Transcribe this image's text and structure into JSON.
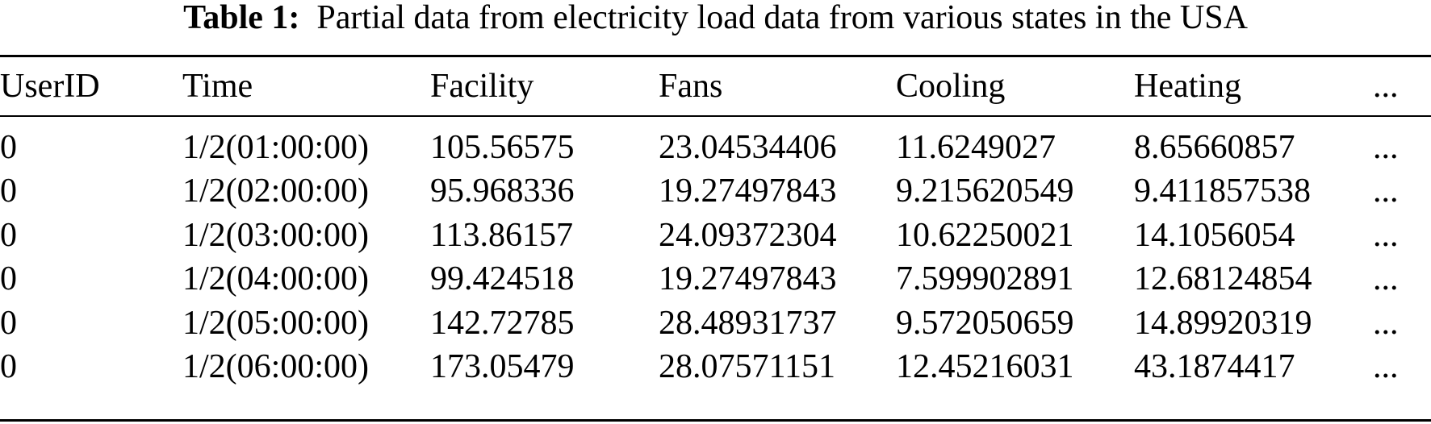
{
  "caption": {
    "label": "Table 1:",
    "text": "Partial data from electricity load data from various states in the USA"
  },
  "table": {
    "headers": [
      "UserID",
      "Time",
      "Facility",
      "Fans",
      "Cooling",
      "Heating",
      "..."
    ],
    "rows": [
      [
        "0",
        "1/2(01:00:00)",
        "105.56575",
        "23.04534406",
        "11.6249027",
        "8.65660857",
        "..."
      ],
      [
        "0",
        "1/2(02:00:00)",
        "95.968336",
        "19.27497843",
        "9.215620549",
        "9.411857538",
        "..."
      ],
      [
        "0",
        "1/2(03:00:00)",
        "113.86157",
        "24.09372304",
        "10.62250021",
        "14.1056054",
        "..."
      ],
      [
        "0",
        "1/2(04:00:00)",
        "99.424518",
        "19.27497843",
        "7.599902891",
        "12.68124854",
        "..."
      ],
      [
        "0",
        "1/2(05:00:00)",
        "142.72785",
        "28.48931737",
        "9.572050659",
        "14.89920319",
        "..."
      ],
      [
        "0",
        "1/2(06:00:00)",
        "173.05479",
        "28.07571151",
        "12.45216031",
        "43.1874417",
        "..."
      ]
    ]
  }
}
